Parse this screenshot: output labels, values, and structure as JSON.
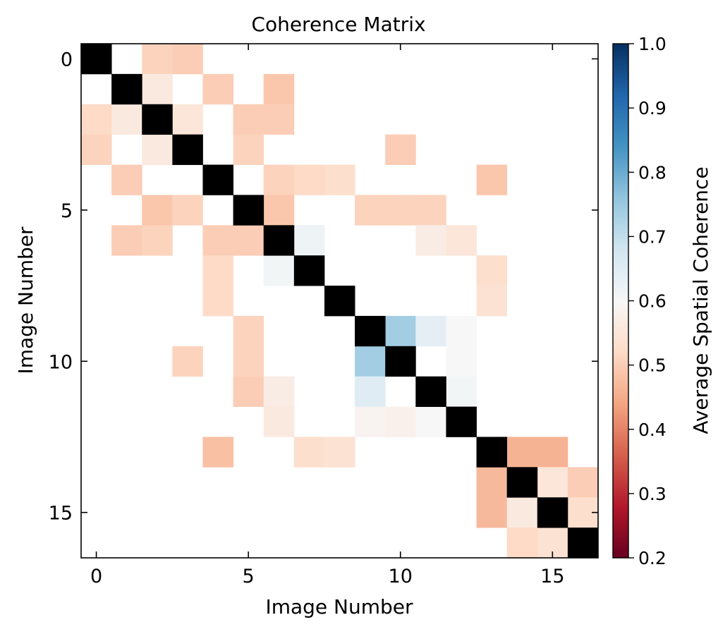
{
  "chart_data": {
    "type": "heatmap",
    "title": "Coherence Matrix",
    "xlabel": "Image Number",
    "ylabel": "Image Number",
    "colorbar_label": "Average Spatial Coherence",
    "x_ticks": [
      0,
      5,
      10,
      15
    ],
    "y_ticks": [
      0,
      5,
      10,
      15
    ],
    "x_tick_labels": [
      "0",
      "5",
      "10",
      "15"
    ],
    "y_tick_labels": [
      "0",
      "5",
      "10",
      "15"
    ],
    "colorbar_ticks": [
      0.2,
      0.3,
      0.4,
      0.5,
      0.6,
      0.7,
      0.8,
      0.9,
      1.0
    ],
    "colorbar_tick_labels": [
      "0.2",
      "0.3",
      "0.4",
      "0.5",
      "0.6",
      "0.7",
      "0.8",
      "0.9",
      "1.0"
    ],
    "color_range": [
      0.2,
      1.0
    ],
    "colormap": "RdBu",
    "n_rows": 17,
    "n_cols": 17,
    "diagonal_value": 1.0,
    "diagonal_color": "#000000",
    "empty_color": "#ffffff",
    "cells": [
      [
        0,
        2,
        0.51
      ],
      [
        0,
        3,
        0.5
      ],
      [
        1,
        2,
        0.56
      ],
      [
        1,
        4,
        0.5
      ],
      [
        1,
        6,
        0.49
      ],
      [
        2,
        0,
        0.52
      ],
      [
        2,
        1,
        0.56
      ],
      [
        2,
        3,
        0.55
      ],
      [
        2,
        5,
        0.5
      ],
      [
        2,
        6,
        0.5
      ],
      [
        3,
        0,
        0.51
      ],
      [
        3,
        2,
        0.56
      ],
      [
        3,
        5,
        0.51
      ],
      [
        3,
        10,
        0.5
      ],
      [
        4,
        1,
        0.5
      ],
      [
        4,
        6,
        0.51
      ],
      [
        4,
        7,
        0.52
      ],
      [
        4,
        8,
        0.53
      ],
      [
        4,
        13,
        0.49
      ],
      [
        5,
        2,
        0.49
      ],
      [
        5,
        3,
        0.51
      ],
      [
        5,
        6,
        0.49
      ],
      [
        5,
        9,
        0.51
      ],
      [
        5,
        10,
        0.51
      ],
      [
        5,
        11,
        0.51
      ],
      [
        6,
        1,
        0.5
      ],
      [
        6,
        2,
        0.51
      ],
      [
        6,
        4,
        0.5
      ],
      [
        6,
        5,
        0.5
      ],
      [
        6,
        7,
        0.62
      ],
      [
        6,
        11,
        0.57
      ],
      [
        6,
        12,
        0.55
      ],
      [
        7,
        4,
        0.52
      ],
      [
        7,
        6,
        0.61
      ],
      [
        7,
        13,
        0.53
      ],
      [
        8,
        4,
        0.52
      ],
      [
        8,
        13,
        0.54
      ],
      [
        9,
        5,
        0.51
      ],
      [
        9,
        10,
        0.74
      ],
      [
        9,
        11,
        0.64
      ],
      [
        9,
        12,
        0.6
      ],
      [
        10,
        3,
        0.51
      ],
      [
        10,
        5,
        0.51
      ],
      [
        10,
        9,
        0.74
      ],
      [
        10,
        12,
        0.6
      ],
      [
        11,
        5,
        0.5
      ],
      [
        11,
        6,
        0.57
      ],
      [
        11,
        9,
        0.65
      ],
      [
        11,
        12,
        0.61
      ],
      [
        12,
        6,
        0.56
      ],
      [
        12,
        9,
        0.59
      ],
      [
        12,
        10,
        0.58
      ],
      [
        12,
        11,
        0.6
      ],
      [
        13,
        4,
        0.48
      ],
      [
        13,
        7,
        0.53
      ],
      [
        13,
        8,
        0.54
      ],
      [
        13,
        14,
        0.46
      ],
      [
        13,
        15,
        0.46
      ],
      [
        14,
        13,
        0.47
      ],
      [
        14,
        15,
        0.55
      ],
      [
        14,
        16,
        0.5
      ],
      [
        15,
        13,
        0.47
      ],
      [
        15,
        14,
        0.56
      ],
      [
        15,
        16,
        0.53
      ],
      [
        16,
        14,
        0.52
      ],
      [
        16,
        15,
        0.54
      ]
    ]
  }
}
